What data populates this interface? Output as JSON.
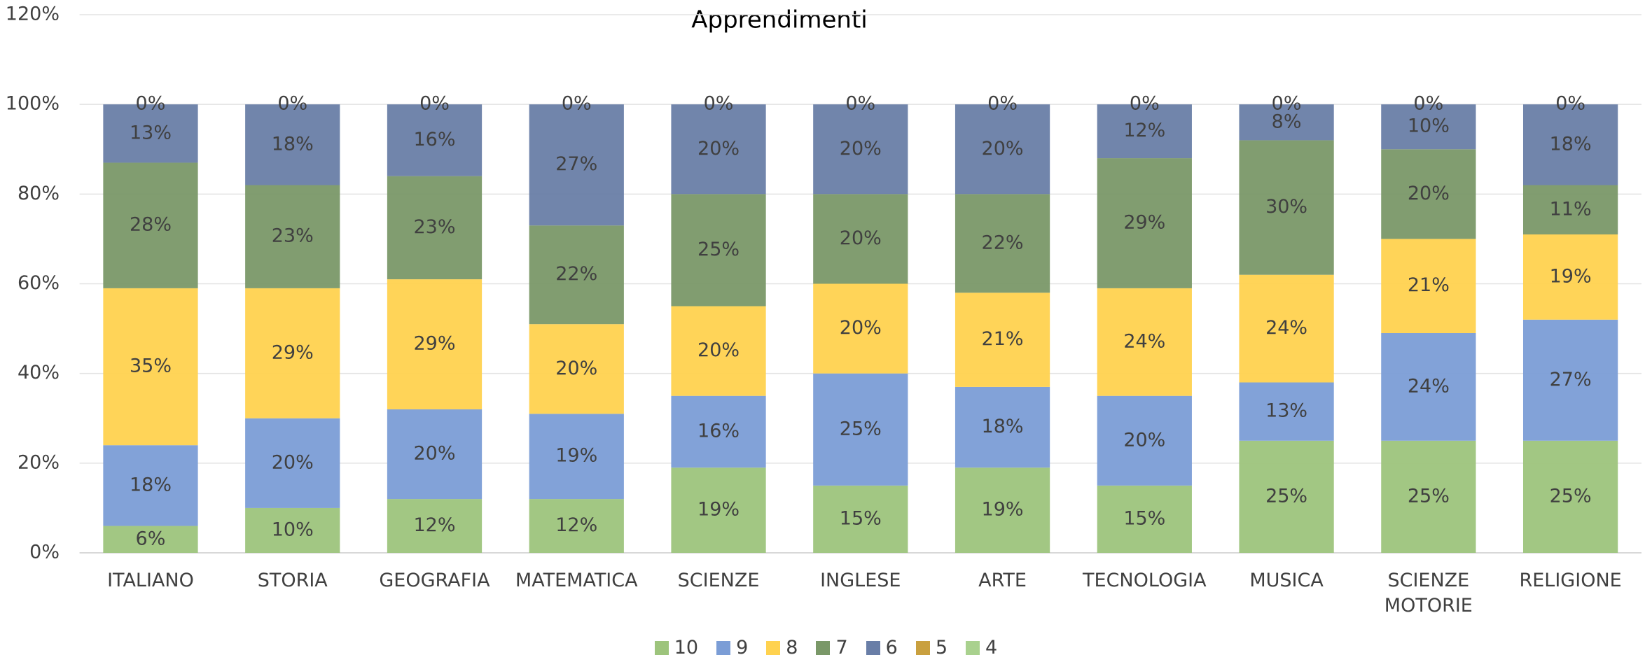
{
  "chart_data": {
    "type": "stacked_bar",
    "title": "Apprendimenti",
    "categories": [
      "ITALIANO",
      "STORIA",
      "GEOGRAFIA",
      "MATEMATICA",
      "SCIENZE",
      "INGLESE",
      "ARTE",
      "TECNOLOGIA",
      "MUSICA",
      "SCIENZE MOTORIE",
      "RELIGIONE"
    ],
    "series": [
      {
        "name": "10",
        "color": "#9dc47c",
        "values": [
          6,
          10,
          12,
          12,
          19,
          15,
          19,
          15,
          25,
          25,
          25
        ],
        "value_labels": [
          "6%",
          "10%",
          "12%",
          "12%",
          "19%",
          "15%",
          "19%",
          "15%",
          "25%",
          "25%",
          "25%"
        ]
      },
      {
        "name": "9",
        "color": "#7b9dd6",
        "values": [
          18,
          20,
          20,
          19,
          16,
          25,
          18,
          20,
          13,
          24,
          27
        ],
        "value_labels": [
          "18%",
          "20%",
          "20%",
          "19%",
          "16%",
          "25%",
          "18%",
          "20%",
          "13%",
          "24%",
          "27%"
        ]
      },
      {
        "name": "8",
        "color": "#ffd24f",
        "values": [
          35,
          29,
          29,
          20,
          20,
          20,
          21,
          24,
          24,
          21,
          19
        ],
        "value_labels": [
          "35%",
          "29%",
          "29%",
          "20%",
          "20%",
          "20%",
          "21%",
          "24%",
          "24%",
          "21%",
          "19%"
        ]
      },
      {
        "name": "7",
        "color": "#7a9868",
        "values": [
          28,
          23,
          23,
          22,
          25,
          20,
          22,
          29,
          30,
          20,
          11
        ],
        "value_labels": [
          "28%",
          "23%",
          "23%",
          "22%",
          "25%",
          "20%",
          "22%",
          "29%",
          "30%",
          "20%",
          "11%"
        ]
      },
      {
        "name": "6",
        "color": "#697ea7",
        "values": [
          13,
          18,
          16,
          27,
          20,
          20,
          20,
          12,
          8,
          10,
          18
        ],
        "value_labels": [
          "13%",
          "18%",
          "16%",
          "27%",
          "20%",
          "20%",
          "20%",
          "12%",
          "8%",
          "10%",
          "18%"
        ]
      },
      {
        "name": "5",
        "color": "#c9a03f",
        "values": [
          0,
          0,
          0,
          0,
          0,
          0,
          0,
          0,
          0,
          0,
          0
        ],
        "value_labels": [
          "0%",
          "0%",
          "0%",
          "0%",
          "0%",
          "0%",
          "0%",
          "0%",
          "0%",
          "0%",
          "0%"
        ]
      },
      {
        "name": "4",
        "color": "#a9d18e",
        "values": [
          null,
          null,
          null,
          null,
          null,
          null,
          null,
          null,
          null,
          null,
          null
        ]
      }
    ],
    "ylim": [
      0,
      120
    ],
    "yticks": [
      {
        "value": 0,
        "label": "0%"
      },
      {
        "value": 20,
        "label": "20%"
      },
      {
        "value": 40,
        "label": "40%"
      },
      {
        "value": 60,
        "label": "60%"
      },
      {
        "value": 80,
        "label": "80%"
      },
      {
        "value": 100,
        "label": "100%"
      },
      {
        "value": 120,
        "label": "120%"
      }
    ],
    "grid": true,
    "legend": "bottom"
  }
}
